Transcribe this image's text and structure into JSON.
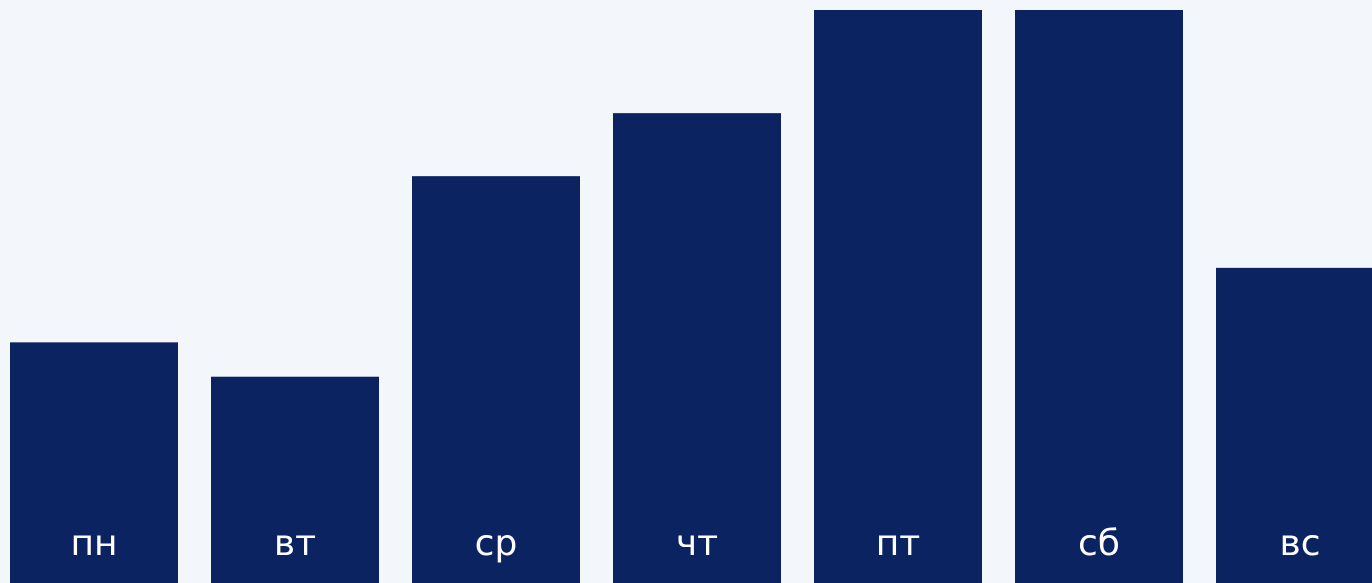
{
  "chart_data": {
    "type": "bar",
    "categories": [
      "пн",
      "вт",
      "ср",
      "чт",
      "пт",
      "сб",
      "вс"
    ],
    "values": [
      42,
      36,
      71,
      82,
      100,
      100,
      55
    ],
    "title": "",
    "xlabel": "",
    "ylabel": "",
    "ylim": [
      0,
      100
    ],
    "grid": false,
    "legend": "none",
    "colors": {
      "bar": "#0B2461",
      "label": "#FFFFFF",
      "background": "#F3F7FC"
    }
  }
}
